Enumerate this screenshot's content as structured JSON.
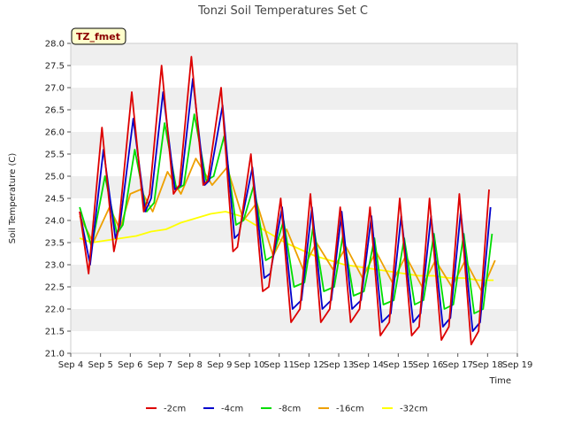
{
  "chart_data": {
    "type": "line",
    "title": "Tonzi Soil Temperatures Set C",
    "xlabel": "Time",
    "ylabel": "Soil Temperature (C)",
    "ylim": [
      21.0,
      28.0
    ],
    "xlim": [
      4,
      19
    ],
    "yticks": [
      "21.0",
      "21.5",
      "22.0",
      "22.5",
      "23.0",
      "23.5",
      "24.0",
      "24.5",
      "25.0",
      "25.5",
      "26.0",
      "26.5",
      "27.0",
      "27.5",
      "28.0"
    ],
    "xticks": [
      "Sep 4",
      "Sep 5",
      "Sep 6",
      "Sep 7",
      "Sep 8",
      "Sep 9",
      "Sep 10",
      "Sep 11",
      "Sep 12",
      "Sep 13",
      "Sep 14",
      "Sep 15",
      "Sep 16",
      "Sep 17",
      "Sep 18",
      "Sep 19"
    ],
    "tag": "TZ_fmet",
    "grid": "horizontal bands",
    "legend_position": "bottom",
    "series": [
      {
        "name": "-2cm",
        "color": "#dd0000",
        "x": [
          4.3,
          4.6,
          5.05,
          5.45,
          5.6,
          6.05,
          6.45,
          6.65,
          7.05,
          7.45,
          7.65,
          8.05,
          8.45,
          8.6,
          9.05,
          9.45,
          9.6,
          10.05,
          10.45,
          10.65,
          11.05,
          11.4,
          11.7,
          12.05,
          12.4,
          12.7,
          13.05,
          13.4,
          13.7,
          14.05,
          14.4,
          14.7,
          15.05,
          15.45,
          15.7,
          16.05,
          16.45,
          16.7,
          17.05,
          17.45,
          17.7,
          18.05
        ],
        "values": [
          24.2,
          22.8,
          26.1,
          23.3,
          23.8,
          26.9,
          24.2,
          24.6,
          27.5,
          24.6,
          24.8,
          27.7,
          24.8,
          24.9,
          27.0,
          23.3,
          23.4,
          25.5,
          22.4,
          22.5,
          24.5,
          21.7,
          22.0,
          24.6,
          21.7,
          22.0,
          24.3,
          21.7,
          22.0,
          24.3,
          21.4,
          21.7,
          24.5,
          21.4,
          21.6,
          24.5,
          21.3,
          21.6,
          24.6,
          21.2,
          21.5,
          24.7
        ]
      },
      {
        "name": "-4cm",
        "color": "#0000cc",
        "x": [
          4.3,
          4.65,
          5.1,
          5.5,
          5.65,
          6.1,
          6.5,
          6.7,
          7.1,
          7.5,
          7.7,
          8.1,
          8.5,
          8.65,
          9.1,
          9.5,
          9.65,
          10.1,
          10.5,
          10.7,
          11.1,
          11.45,
          11.75,
          12.1,
          12.45,
          12.75,
          13.1,
          13.45,
          13.75,
          14.1,
          14.45,
          14.75,
          15.1,
          15.5,
          15.75,
          16.1,
          16.5,
          16.75,
          17.1,
          17.5,
          17.75,
          18.1
        ],
        "values": [
          24.2,
          23.0,
          25.6,
          23.6,
          23.9,
          26.3,
          24.2,
          24.5,
          26.9,
          24.7,
          24.8,
          27.2,
          24.8,
          24.9,
          26.6,
          23.6,
          23.7,
          25.2,
          22.7,
          22.8,
          24.3,
          22.0,
          22.2,
          24.3,
          22.0,
          22.2,
          24.2,
          22.0,
          22.2,
          24.1,
          21.7,
          21.9,
          24.1,
          21.7,
          21.9,
          24.1,
          21.6,
          21.8,
          24.2,
          21.5,
          21.7,
          24.3
        ]
      },
      {
        "name": "-8cm",
        "color": "#00dd00",
        "x": [
          4.3,
          4.7,
          5.15,
          5.55,
          5.75,
          6.15,
          6.55,
          6.8,
          7.15,
          7.55,
          7.8,
          8.15,
          8.55,
          8.8,
          9.15,
          9.55,
          9.8,
          10.15,
          10.55,
          10.8,
          11.15,
          11.5,
          11.85,
          12.15,
          12.5,
          12.85,
          13.15,
          13.5,
          13.85,
          14.2,
          14.5,
          14.85,
          15.2,
          15.55,
          15.85,
          16.2,
          16.55,
          16.85,
          17.2,
          17.55,
          17.85,
          18.15
        ],
        "values": [
          24.3,
          23.4,
          25.0,
          23.7,
          23.9,
          25.6,
          24.2,
          24.4,
          26.2,
          24.7,
          24.8,
          26.4,
          24.9,
          25.0,
          25.9,
          23.9,
          24.0,
          24.8,
          23.1,
          23.2,
          24.0,
          22.5,
          22.6,
          23.9,
          22.4,
          22.5,
          23.7,
          22.3,
          22.4,
          23.6,
          22.1,
          22.2,
          23.6,
          22.1,
          22.2,
          23.7,
          22.0,
          22.1,
          23.7,
          21.9,
          22.0,
          23.7
        ]
      },
      {
        "name": "-16cm",
        "color": "#eea000",
        "x": [
          4.3,
          4.75,
          5.3,
          5.65,
          6.0,
          6.35,
          6.75,
          7.25,
          7.7,
          8.2,
          8.75,
          9.25,
          9.8,
          10.25,
          10.8,
          11.25,
          11.8,
          12.25,
          12.8,
          13.25,
          13.8,
          14.25,
          14.8,
          15.25,
          15.8,
          16.25,
          16.8,
          17.25,
          17.8,
          18.25
        ],
        "values": [
          24.1,
          23.5,
          24.3,
          23.8,
          24.6,
          24.7,
          24.2,
          25.1,
          24.6,
          25.4,
          24.8,
          25.2,
          24.0,
          24.4,
          23.2,
          23.8,
          22.9,
          23.5,
          22.9,
          23.4,
          22.7,
          23.3,
          22.6,
          23.2,
          22.5,
          23.1,
          22.5,
          23.1,
          22.4,
          23.1
        ]
      },
      {
        "name": "-32cm",
        "color": "#ffff00",
        "x": [
          4.3,
          4.7,
          5.2,
          5.7,
          6.2,
          6.7,
          7.2,
          7.7,
          8.2,
          8.7,
          9.2,
          9.7,
          10.2,
          10.7,
          11.2,
          11.7,
          12.2,
          12.7,
          13.2,
          13.7,
          14.2,
          14.7,
          15.2,
          15.7,
          16.2,
          16.7,
          17.2,
          17.7,
          18.2
        ],
        "values": [
          23.6,
          23.5,
          23.55,
          23.6,
          23.65,
          23.75,
          23.8,
          23.95,
          24.05,
          24.15,
          24.2,
          24.1,
          23.9,
          23.7,
          23.5,
          23.35,
          23.2,
          23.1,
          23.0,
          22.95,
          22.9,
          22.85,
          22.8,
          22.75,
          22.75,
          22.7,
          22.7,
          22.65,
          22.65
        ]
      }
    ]
  }
}
